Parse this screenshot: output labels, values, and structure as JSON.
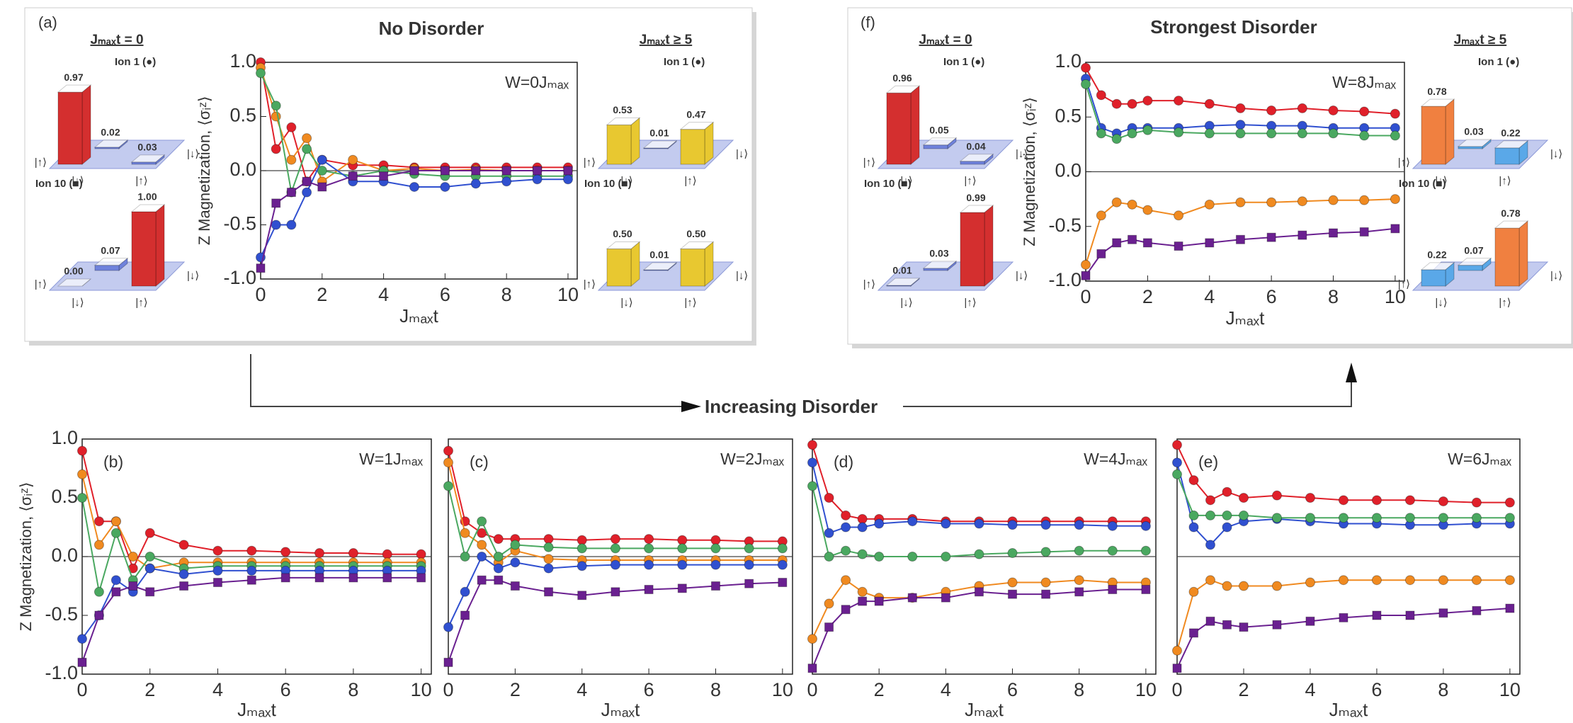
{
  "annotation": "Increasing Disorder",
  "chart_data": [
    {
      "type": "line",
      "panel_label": "(a)",
      "title": "No Disorder",
      "annotation": "W=0Jₘₐₓ",
      "xlabel": "Jₘₐₓt",
      "ylabel": "Z Magnetization, ⟨σᵢᶻ⟩",
      "x": [
        0,
        0.5,
        1,
        1.5,
        2,
        3,
        4,
        5,
        6,
        7,
        8,
        9,
        10
      ],
      "xlim": [
        0,
        10.3
      ],
      "ylim": [
        -1,
        1
      ],
      "xticks": [
        0,
        2,
        4,
        6,
        8,
        10
      ],
      "yticks": [
        {
          "value": -1,
          "label": "-1.0"
        },
        {
          "value": -0.5,
          "label": "-0.5"
        },
        {
          "value": 0,
          "label": "0.0"
        },
        {
          "value": 0.5,
          "label": "0.5"
        },
        {
          "value": 1,
          "label": "1.0"
        }
      ],
      "series": [
        {
          "color": "#e0202a",
          "marker": "circle",
          "values": [
            1.0,
            0.2,
            0.4,
            -0.1,
            0.1,
            0.05,
            0.05,
            0.03,
            0.03,
            0.03,
            0.03,
            0.03,
            0.03
          ]
        },
        {
          "color": "#f08a20",
          "marker": "circle",
          "values": [
            0.95,
            0.5,
            0.1,
            0.3,
            -0.1,
            0.1,
            0.0,
            0.02,
            0.0,
            0.01,
            0.0,
            0.0,
            0.0
          ]
        },
        {
          "color": "#4aa860",
          "marker": "circle",
          "values": [
            0.9,
            0.6,
            -0.2,
            0.2,
            0.0,
            -0.05,
            0.0,
            -0.03,
            -0.05,
            -0.05,
            -0.05,
            -0.05,
            -0.05
          ]
        },
        {
          "color": "#3050d0",
          "marker": "circle",
          "values": [
            -0.8,
            -0.5,
            -0.5,
            -0.2,
            0.1,
            -0.1,
            -0.1,
            -0.15,
            -0.15,
            -0.12,
            -0.1,
            -0.08,
            -0.08
          ]
        },
        {
          "color": "#6a2090",
          "marker": "square",
          "values": [
            -0.9,
            -0.3,
            -0.2,
            -0.1,
            -0.15,
            -0.05,
            -0.05,
            0.0,
            0.0,
            0.0,
            0.0,
            0.0,
            0.0
          ]
        }
      ],
      "basis_labels": [
        "|↑⟩",
        "|↓⟩",
        "|↓⟩",
        "|↑⟩"
      ],
      "insets": [
        {
          "heading": "Jₘₐₓt = 0",
          "groups": [
            {
              "label": "Ion 1 (●)",
              "values": [
                0.97,
                0.02,
                0.03
              ],
              "value_labels": [
                "0.97",
                "0.02",
                "0.03"
              ],
              "colors": [
                "#d42f2f",
                "#6f82dc",
                "#6f82dc"
              ]
            },
            {
              "label": "Ion 10 (■)",
              "values": [
                0,
                0.07,
                1
              ],
              "value_labels": [
                "0.00",
                "0.07",
                "1.00"
              ],
              "colors": [
                "#6f82dc",
                "#6f82dc",
                "#d42f2f"
              ]
            }
          ]
        },
        {
          "heading": "Jₘₐₓt ≥ 5",
          "groups": [
            {
              "label": "Ion 1 (●)",
              "values": [
                0.53,
                0.01,
                0.47
              ],
              "value_labels": [
                "0.53",
                "0.01",
                "0.47"
              ],
              "colors": [
                "#e8c830",
                "#6f82dc",
                "#e8c830"
              ]
            },
            {
              "label": "Ion 10 (■)",
              "values": [
                0.5,
                0.01,
                0.5
              ],
              "value_labels": [
                "0.50",
                "0.01",
                "0.50"
              ],
              "colors": [
                "#e8c830",
                "#6f82dc",
                "#e8c830"
              ]
            }
          ]
        }
      ]
    },
    {
      "type": "line",
      "panel_label": "(b)",
      "annotation": "W=1Jₘₐₓ",
      "xlabel": "Jₘₐₓt",
      "ylabel": "Z Magnetization, ⟨σᵢᶻ⟩",
      "x": [
        0,
        0.5,
        1,
        1.5,
        2,
        3,
        4,
        5,
        6,
        7,
        8,
        9,
        10
      ],
      "xlim": [
        0,
        10.3
      ],
      "ylim": [
        -1,
        1
      ],
      "xticks": [
        0,
        2,
        4,
        6,
        8,
        10
      ],
      "yticks": [
        {
          "value": -1,
          "label": "-1.0"
        },
        {
          "value": -0.5,
          "label": "-0.5"
        },
        {
          "value": 0,
          "label": "0.0"
        },
        {
          "value": 0.5,
          "label": "0.5"
        },
        {
          "value": 1,
          "label": "1.0"
        }
      ],
      "series": [
        {
          "color": "#e0202a",
          "marker": "circle",
          "values": [
            0.9,
            0.3,
            0.3,
            -0.1,
            0.2,
            0.1,
            0.05,
            0.05,
            0.04,
            0.03,
            0.03,
            0.02,
            0.02
          ]
        },
        {
          "color": "#f08a20",
          "marker": "circle",
          "values": [
            0.7,
            0.1,
            0.3,
            0.0,
            -0.1,
            -0.05,
            -0.05,
            -0.05,
            -0.05,
            -0.05,
            -0.05,
            -0.05,
            -0.05
          ]
        },
        {
          "color": "#4aa860",
          "marker": "circle",
          "values": [
            0.5,
            -0.3,
            0.2,
            -0.2,
            0.0,
            -0.1,
            -0.08,
            -0.08,
            -0.08,
            -0.08,
            -0.08,
            -0.08,
            -0.08
          ]
        },
        {
          "color": "#3050d0",
          "marker": "circle",
          "values": [
            -0.7,
            -0.5,
            -0.2,
            -0.3,
            -0.1,
            -0.15,
            -0.12,
            -0.12,
            -0.12,
            -0.12,
            -0.12,
            -0.12,
            -0.12
          ]
        },
        {
          "color": "#6a2090",
          "marker": "square",
          "values": [
            -0.9,
            -0.5,
            -0.3,
            -0.25,
            -0.3,
            -0.25,
            -0.22,
            -0.2,
            -0.18,
            -0.18,
            -0.18,
            -0.18,
            -0.18
          ]
        }
      ]
    },
    {
      "type": "line",
      "panel_label": "(c)",
      "annotation": "W=2Jₘₐₓ",
      "xlabel": "Jₘₐₓt",
      "x": [
        0,
        0.5,
        1,
        1.5,
        2,
        3,
        4,
        5,
        6,
        7,
        8,
        9,
        10
      ],
      "xlim": [
        0,
        10.3
      ],
      "ylim": [
        -1,
        1
      ],
      "xticks": [
        0,
        2,
        4,
        6,
        8,
        10
      ],
      "series": [
        {
          "color": "#e0202a",
          "marker": "circle",
          "values": [
            0.9,
            0.3,
            0.2,
            0.15,
            0.15,
            0.15,
            0.14,
            0.15,
            0.15,
            0.14,
            0.14,
            0.13,
            0.13
          ]
        },
        {
          "color": "#f08a20",
          "marker": "circle",
          "values": [
            0.8,
            0.2,
            0.1,
            -0.05,
            0.05,
            -0.02,
            -0.03,
            -0.03,
            -0.03,
            -0.03,
            -0.03,
            -0.03,
            -0.03
          ]
        },
        {
          "color": "#4aa860",
          "marker": "circle",
          "values": [
            0.6,
            0.0,
            0.3,
            0.0,
            0.1,
            0.08,
            0.07,
            0.07,
            0.07,
            0.07,
            0.07,
            0.07,
            0.07
          ]
        },
        {
          "color": "#3050d0",
          "marker": "circle",
          "values": [
            -0.6,
            -0.3,
            0.0,
            -0.1,
            -0.05,
            -0.1,
            -0.08,
            -0.07,
            -0.07,
            -0.07,
            -0.07,
            -0.07,
            -0.07
          ]
        },
        {
          "color": "#6a2090",
          "marker": "square",
          "values": [
            -0.9,
            -0.5,
            -0.2,
            -0.2,
            -0.25,
            -0.3,
            -0.33,
            -0.3,
            -0.28,
            -0.27,
            -0.25,
            -0.23,
            -0.22
          ]
        }
      ]
    },
    {
      "type": "line",
      "panel_label": "(d)",
      "annotation": "W=4Jₘₐₓ",
      "xlabel": "Jₘₐₓt",
      "x": [
        0,
        0.5,
        1,
        1.5,
        2,
        3,
        4,
        5,
        6,
        7,
        8,
        9,
        10
      ],
      "xlim": [
        0,
        10.3
      ],
      "ylim": [
        -1,
        1
      ],
      "xticks": [
        0,
        2,
        4,
        6,
        8,
        10
      ],
      "series": [
        {
          "color": "#e0202a",
          "marker": "circle",
          "values": [
            0.95,
            0.5,
            0.35,
            0.32,
            0.32,
            0.32,
            0.3,
            0.3,
            0.3,
            0.3,
            0.3,
            0.3,
            0.3
          ]
        },
        {
          "color": "#3050d0",
          "marker": "circle",
          "values": [
            0.8,
            0.2,
            0.25,
            0.25,
            0.28,
            0.3,
            0.28,
            0.28,
            0.27,
            0.27,
            0.27,
            0.26,
            0.26
          ]
        },
        {
          "color": "#4aa860",
          "marker": "circle",
          "values": [
            0.6,
            0.0,
            0.05,
            0.02,
            0.0,
            0.0,
            0.0,
            0.02,
            0.03,
            0.04,
            0.05,
            0.05,
            0.05
          ]
        },
        {
          "color": "#f08a20",
          "marker": "circle",
          "values": [
            -0.7,
            -0.4,
            -0.2,
            -0.3,
            -0.35,
            -0.35,
            -0.3,
            -0.25,
            -0.22,
            -0.22,
            -0.2,
            -0.22,
            -0.22
          ]
        },
        {
          "color": "#6a2090",
          "marker": "square",
          "values": [
            -0.95,
            -0.6,
            -0.45,
            -0.38,
            -0.38,
            -0.35,
            -0.35,
            -0.3,
            -0.32,
            -0.32,
            -0.3,
            -0.28,
            -0.28
          ]
        }
      ]
    },
    {
      "type": "line",
      "panel_label": "(e)",
      "annotation": "W=6Jₘₐₓ",
      "xlabel": "Jₘₐₓt",
      "x": [
        0,
        0.5,
        1,
        1.5,
        2,
        3,
        4,
        5,
        6,
        7,
        8,
        9,
        10
      ],
      "xlim": [
        0,
        10.3
      ],
      "ylim": [
        -1,
        1
      ],
      "xticks": [
        0,
        2,
        4,
        6,
        8,
        10
      ],
      "series": [
        {
          "color": "#e0202a",
          "marker": "circle",
          "values": [
            0.95,
            0.65,
            0.48,
            0.55,
            0.5,
            0.52,
            0.5,
            0.48,
            0.48,
            0.48,
            0.47,
            0.46,
            0.46
          ]
        },
        {
          "color": "#3050d0",
          "marker": "circle",
          "values": [
            0.8,
            0.25,
            0.1,
            0.25,
            0.3,
            0.32,
            0.3,
            0.28,
            0.28,
            0.27,
            0.27,
            0.28,
            0.28
          ]
        },
        {
          "color": "#4aa860",
          "marker": "circle",
          "values": [
            0.7,
            0.35,
            0.35,
            0.35,
            0.35,
            0.33,
            0.33,
            0.33,
            0.33,
            0.33,
            0.33,
            0.33,
            0.33
          ]
        },
        {
          "color": "#f08a20",
          "marker": "circle",
          "values": [
            -0.8,
            -0.3,
            -0.2,
            -0.25,
            -0.25,
            -0.25,
            -0.22,
            -0.2,
            -0.2,
            -0.2,
            -0.2,
            -0.2,
            -0.2
          ]
        },
        {
          "color": "#6a2090",
          "marker": "square",
          "values": [
            -0.95,
            -0.65,
            -0.55,
            -0.58,
            -0.6,
            -0.58,
            -0.55,
            -0.52,
            -0.5,
            -0.5,
            -0.48,
            -0.46,
            -0.44
          ]
        }
      ]
    },
    {
      "type": "line",
      "panel_label": "(f)",
      "title": "Strongest Disorder",
      "annotation": "W=8Jₘₐₓ",
      "xlabel": "Jₘₐₓt",
      "ylabel": "Z Magnetization, ⟨σᵢᶻ⟩",
      "x": [
        0,
        0.5,
        1,
        1.5,
        2,
        3,
        4,
        5,
        6,
        7,
        8,
        9,
        10
      ],
      "xlim": [
        0,
        10.3
      ],
      "ylim": [
        -1,
        1
      ],
      "xticks": [
        0,
        2,
        4,
        6,
        8,
        10
      ],
      "yticks": [
        {
          "value": -1,
          "label": "-1.0"
        },
        {
          "value": -0.5,
          "label": "-0.5"
        },
        {
          "value": 0,
          "label": "0.0"
        },
        {
          "value": 0.5,
          "label": "0.5"
        },
        {
          "value": 1,
          "label": "1.0"
        }
      ],
      "series": [
        {
          "color": "#e0202a",
          "marker": "circle",
          "values": [
            0.95,
            0.7,
            0.62,
            0.62,
            0.65,
            0.65,
            0.62,
            0.58,
            0.56,
            0.58,
            0.56,
            0.55,
            0.53
          ]
        },
        {
          "color": "#3050d0",
          "marker": "circle",
          "values": [
            0.85,
            0.4,
            0.35,
            0.4,
            0.4,
            0.4,
            0.42,
            0.43,
            0.42,
            0.42,
            0.4,
            0.4,
            0.4
          ]
        },
        {
          "color": "#4aa860",
          "marker": "circle",
          "values": [
            0.8,
            0.35,
            0.3,
            0.35,
            0.38,
            0.36,
            0.35,
            0.35,
            0.35,
            0.35,
            0.35,
            0.33,
            0.33
          ]
        },
        {
          "color": "#f08a20",
          "marker": "circle",
          "values": [
            -0.85,
            -0.4,
            -0.28,
            -0.3,
            -0.35,
            -0.4,
            -0.3,
            -0.28,
            -0.28,
            -0.27,
            -0.26,
            -0.26,
            -0.25
          ]
        },
        {
          "color": "#6a2090",
          "marker": "square",
          "values": [
            -0.95,
            -0.75,
            -0.65,
            -0.62,
            -0.65,
            -0.68,
            -0.65,
            -0.62,
            -0.6,
            -0.58,
            -0.56,
            -0.55,
            -0.52
          ]
        }
      ],
      "basis_labels": [
        "|↑⟩",
        "|↓⟩",
        "|↓⟩",
        "|↑⟩"
      ],
      "insets": [
        {
          "heading": "Jₘₐₓt = 0",
          "groups": [
            {
              "label": "Ion 1 (●)",
              "values": [
                0.96,
                0.05,
                0.04
              ],
              "value_labels": [
                "0.96",
                "0.05",
                "0.04"
              ],
              "colors": [
                "#d42f2f",
                "#6f82dc",
                "#6f82dc"
              ]
            },
            {
              "label": "Ion 10 (■)",
              "values": [
                0.01,
                0.03,
                0.99
              ],
              "value_labels": [
                "0.01",
                "0.03",
                "0.99"
              ],
              "colors": [
                "#6f82dc",
                "#6f82dc",
                "#d42f2f"
              ]
            }
          ]
        },
        {
          "heading": "Jₘₐₓt ≥ 5",
          "groups": [
            {
              "label": "Ion 1 (●)",
              "values": [
                0.78,
                0.03,
                0.22
              ],
              "value_labels": [
                "0.78",
                "0.03",
                "0.22"
              ],
              "colors": [
                "#f08040",
                "#5aa8e8",
                "#5aa8e8"
              ]
            },
            {
              "label": "Ion 10 (■)",
              "values": [
                0.22,
                0.07,
                0.78
              ],
              "value_labels": [
                "0.22",
                "0.07",
                "0.78"
              ],
              "colors": [
                "#5aa8e8",
                "#5aa8e8",
                "#f08040"
              ]
            }
          ]
        }
      ]
    }
  ]
}
